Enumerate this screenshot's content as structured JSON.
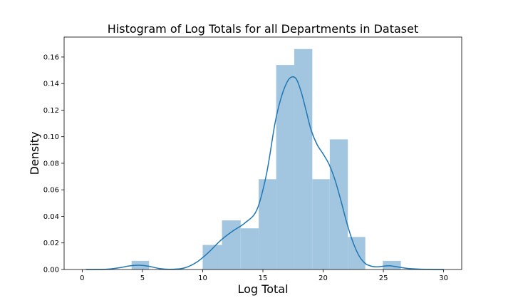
{
  "chart_data": {
    "type": "bar",
    "title": "Histogram of Log Totals for all Departments in Dataset",
    "xlabel": "Log Total",
    "ylabel": "Density",
    "xlim": [
      -1.5,
      31.5
    ],
    "ylim": [
      0,
      0.175
    ],
    "xticks": [
      "0",
      "5",
      "10",
      "15",
      "20",
      "25",
      "30"
    ],
    "xtick_values": [
      0,
      5,
      10,
      15,
      20,
      25,
      30
    ],
    "yticks": [
      "0.00",
      "0.02",
      "0.04",
      "0.06",
      "0.08",
      "0.10",
      "0.12",
      "0.14",
      "0.16"
    ],
    "ytick_values": [
      0,
      0.02,
      0.04,
      0.06,
      0.08,
      0.1,
      0.12,
      0.14,
      0.16
    ],
    "bins": [
      {
        "x0": 4.1,
        "x1": 5.55,
        "density": 0.0065
      },
      {
        "x0": 10.0,
        "x1": 11.6,
        "density": 0.0185
      },
      {
        "x0": 11.6,
        "x1": 13.15,
        "density": 0.037
      },
      {
        "x0": 13.15,
        "x1": 14.65,
        "density": 0.031
      },
      {
        "x0": 14.65,
        "x1": 16.1,
        "density": 0.068
      },
      {
        "x0": 16.1,
        "x1": 17.6,
        "density": 0.154
      },
      {
        "x0": 17.6,
        "x1": 19.1,
        "density": 0.166
      },
      {
        "x0": 19.1,
        "x1": 20.55,
        "density": 0.068
      },
      {
        "x0": 20.55,
        "x1": 22.05,
        "density": 0.098
      },
      {
        "x0": 22.05,
        "x1": 23.5,
        "density": 0.0245
      },
      {
        "x0": 24.95,
        "x1": 26.45,
        "density": 0.0065
      }
    ],
    "kde": {
      "x": [
        0.3,
        2,
        3,
        4,
        4.7,
        5.5,
        6.5,
        7.5,
        8.5,
        9.5,
        10.5,
        11.5,
        12.5,
        13.5,
        14.5,
        15.3,
        16,
        16.5,
        17,
        17.4,
        17.8,
        18.2,
        18.6,
        19,
        19.5,
        20,
        20.5,
        21,
        21.5,
        22,
        22.5,
        23,
        23.5,
        24,
        24.5,
        25,
        25.5,
        26,
        26.5,
        27,
        28,
        29,
        30
      ],
      "y": [
        0.0,
        0.0002,
        0.0012,
        0.0028,
        0.0032,
        0.0025,
        0.0006,
        0.0002,
        0.0012,
        0.0055,
        0.013,
        0.022,
        0.029,
        0.035,
        0.045,
        0.072,
        0.11,
        0.129,
        0.141,
        0.145,
        0.143,
        0.133,
        0.119,
        0.105,
        0.094,
        0.087,
        0.079,
        0.067,
        0.051,
        0.034,
        0.02,
        0.01,
        0.0045,
        0.0025,
        0.002,
        0.0025,
        0.0028,
        0.0022,
        0.0015,
        0.0008,
        0.0003,
        0.0001,
        0.0
      ]
    },
    "colors": {
      "bar_fill": "#a3c6e0",
      "kde_line": "#1f77b4",
      "axes": "#000000",
      "background": "#ffffff"
    }
  }
}
